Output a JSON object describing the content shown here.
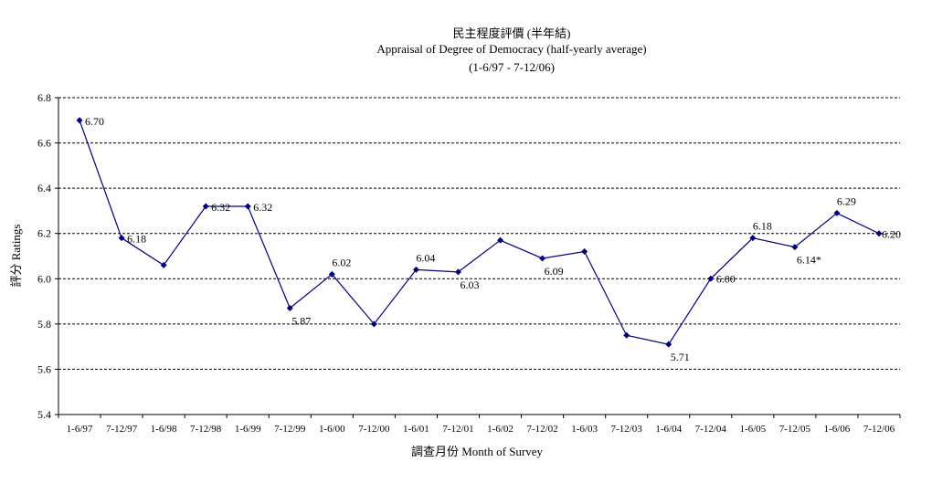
{
  "chart_data": {
    "type": "line",
    "title": "民主程度評價 (半年結)",
    "subtitle": "Appraisal of Degree of Democracy (half-yearly average)",
    "subtitle2": "(1-6/97 - 7-12/06)",
    "xlabel": "調查月份 Month of Survey",
    "ylabel": "評分 Ratings",
    "ylim": [
      5.4,
      6.8
    ],
    "yticks": [
      "5.4",
      "5.6",
      "5.8",
      "6.0",
      "6.2",
      "6.4",
      "6.6",
      "6.8"
    ],
    "grid": true,
    "categories": [
      "1-6/97",
      "7-12/97",
      "1-6/98",
      "7-12/98",
      "1-6/99",
      "7-12/99",
      "1-6/00",
      "7-12/00",
      "1-6/01",
      "7-12/01",
      "1-6/02",
      "7-12/02",
      "1-6/03",
      "7-12/03",
      "1-6/04",
      "7-12/04",
      "1-6/05",
      "7-12/05",
      "1-6/06",
      "7-12/06"
    ],
    "series": [
      {
        "values": [
          6.7,
          6.18,
          6.06,
          6.32,
          6.32,
          5.87,
          6.02,
          5.8,
          6.04,
          6.03,
          6.17,
          6.09,
          6.12,
          5.75,
          5.71,
          6.0,
          6.18,
          6.14,
          6.29,
          6.2
        ],
        "color": "#000080"
      }
    ],
    "data_labels": [
      {
        "index": 0,
        "text": "6.70"
      },
      {
        "index": 1,
        "text": "6.18"
      },
      {
        "index": 3,
        "text": "6.32"
      },
      {
        "index": 4,
        "text": "6.32"
      },
      {
        "index": 5,
        "text": "5.87"
      },
      {
        "index": 6,
        "text": "6.02"
      },
      {
        "index": 8,
        "text": "6.04"
      },
      {
        "index": 9,
        "text": "6.03"
      },
      {
        "index": 11,
        "text": "6.09"
      },
      {
        "index": 14,
        "text": "5.71"
      },
      {
        "index": 15,
        "text": "6.00"
      },
      {
        "index": 16,
        "text": "6.18"
      },
      {
        "index": 17,
        "text": "6.14*"
      },
      {
        "index": 18,
        "text": "6.29"
      },
      {
        "index": 19,
        "text": "6.20"
      }
    ]
  }
}
